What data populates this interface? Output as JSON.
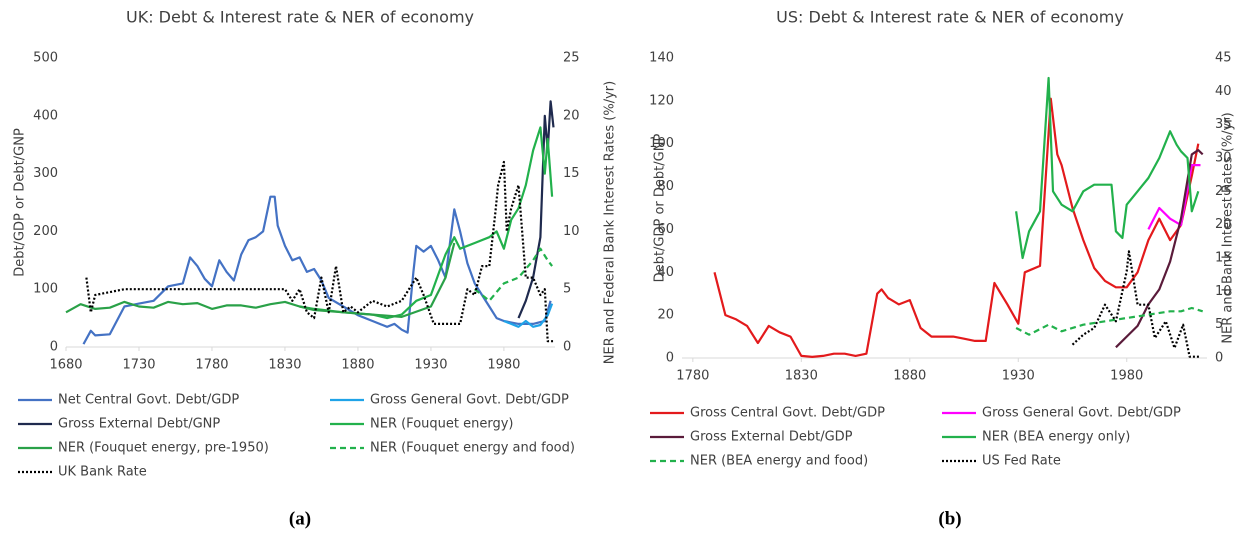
{
  "chart_data": [
    {
      "type": "line",
      "title": "UK: Debt & Interest rate & NER of economy",
      "caption": "(a)",
      "ylabel": "Debt/GDP or Debt/GNP",
      "y2label": "NER and Federal Bank Interest Rates (%/yr)",
      "xlim": [
        1680,
        2015
      ],
      "xticks": [
        1680,
        1730,
        1780,
        1830,
        1880,
        1930,
        1980
      ],
      "ylim": [
        0,
        500
      ],
      "yticks": [
        0,
        100,
        200,
        300,
        400,
        500
      ],
      "y2lim": [
        0,
        25
      ],
      "y2ticks": [
        0,
        5,
        10,
        15,
        20,
        25
      ],
      "grid": false,
      "series": [
        {
          "name": "Net Central Govt. Debt/GDP",
          "color": "#4472c4",
          "style": "solid",
          "x": [
            1692,
            1697,
            1700,
            1710,
            1720,
            1730,
            1740,
            1750,
            1760,
            1765,
            1770,
            1775,
            1780,
            1785,
            1790,
            1795,
            1800,
            1805,
            1810,
            1815,
            1820,
            1823,
            1825,
            1830,
            1835,
            1840,
            1845,
            1850,
            1855,
            1860,
            1870,
            1880,
            1890,
            1900,
            1905,
            1910,
            1914,
            1918,
            1920,
            1925,
            1930,
            1935,
            1940,
            1946,
            1950,
            1955,
            1960,
            1965,
            1970,
            1975,
            1980,
            1990,
            2000,
            2008,
            2012
          ],
          "values": [
            5,
            28,
            20,
            22,
            70,
            75,
            80,
            105,
            110,
            155,
            140,
            118,
            105,
            150,
            130,
            115,
            160,
            185,
            190,
            200,
            260,
            260,
            210,
            175,
            150,
            155,
            130,
            135,
            115,
            85,
            70,
            55,
            45,
            35,
            40,
            30,
            25,
            130,
            175,
            165,
            175,
            150,
            120,
            238,
            200,
            145,
            110,
            90,
            70,
            50,
            45,
            40,
            40,
            45,
            80
          ]
        },
        {
          "name": "Gross General Govt. Debt/GDP",
          "color": "#1fa3e8",
          "style": "solid",
          "x": [
            1980,
            1990,
            1995,
            2000,
            2005,
            2010,
            2013
          ],
          "values": [
            45,
            35,
            45,
            35,
            38,
            55,
            75
          ]
        },
        {
          "name": "Gross External Debt/GNP",
          "color": "#1f2a4e",
          "style": "solid",
          "x": [
            1990,
            1995,
            2000,
            2005,
            2008,
            2010,
            2012,
            2014
          ],
          "values": [
            50,
            80,
            120,
            190,
            400,
            340,
            425,
            380
          ]
        },
        {
          "name": "NER (Fouquet energy)",
          "color": "#22b14c",
          "style": "solid",
          "axis": "y2",
          "x": [
            1840,
            1850,
            1870,
            1890,
            1900,
            1910,
            1920,
            1930,
            1940,
            1946,
            1950,
            1960,
            1970,
            1975,
            1980,
            1985,
            1990,
            1995,
            2000,
            2005,
            2008,
            2010,
            2013
          ],
          "values": [
            3.5,
            3.3,
            3,
            2.8,
            2.5,
            2.8,
            4,
            4.5,
            8,
            9.5,
            8.5,
            9,
            9.5,
            10,
            8.5,
            11,
            12,
            14,
            17,
            19,
            15,
            18,
            13
          ]
        },
        {
          "name": "NER (Fouquet energy, pre-1950)",
          "color": "#2aa148",
          "style": "solid",
          "axis": "y2",
          "x": [
            1680,
            1690,
            1700,
            1710,
            1720,
            1730,
            1740,
            1750,
            1760,
            1770,
            1780,
            1790,
            1800,
            1810,
            1820,
            1830,
            1840,
            1850,
            1870,
            1890,
            1910,
            1930,
            1940,
            1946
          ],
          "values": [
            3,
            3.7,
            3.3,
            3.4,
            3.9,
            3.5,
            3.4,
            3.9,
            3.7,
            3.8,
            3.3,
            3.6,
            3.6,
            3.4,
            3.7,
            3.9,
            3.5,
            3.2,
            3,
            2.8,
            2.6,
            3.5,
            6,
            9
          ]
        },
        {
          "name": "NER (Fouquet energy and food)",
          "color": "#22b14c",
          "style": "dashed",
          "axis": "y2",
          "x": [
            1960,
            1970,
            1980,
            1990,
            2000,
            2005,
            2010,
            2013
          ],
          "values": [
            5,
            4,
            5.5,
            6,
            7.5,
            8.5,
            7.5,
            7
          ]
        },
        {
          "name": "UK Bank Rate",
          "color": "#000000",
          "style": "dotted",
          "axis": "y2",
          "x": [
            1694,
            1697,
            1700,
            1720,
            1830,
            1835,
            1840,
            1845,
            1850,
            1855,
            1860,
            1865,
            1870,
            1875,
            1880,
            1890,
            1900,
            1910,
            1920,
            1925,
            1932,
            1950,
            1955,
            1960,
            1965,
            1970,
            1974,
            1976,
            1980,
            1982,
            1985,
            1990,
            1995,
            2000,
            2005,
            2008,
            2010,
            2014
          ],
          "values": [
            6,
            3,
            4.5,
            5,
            5,
            4,
            5,
            3,
            2.5,
            6,
            3,
            7,
            3,
            3.5,
            3,
            4,
            3.5,
            4,
            6,
            4.5,
            2,
            2,
            5,
            4.5,
            7,
            7,
            11.5,
            14,
            16,
            10,
            12,
            14,
            6,
            6,
            4.5,
            5,
            0.5,
            0.5
          ]
        }
      ]
    },
    {
      "type": "line",
      "title": "US: Debt & Interest rate & NER of economy",
      "caption": "(b)",
      "ylabel": "Debt/GDP or Debt/GNP",
      "y2label": "NER and Bank Interest Rates (%/yr)",
      "xlim": [
        1775,
        2017
      ],
      "xticks": [
        1780,
        1830,
        1880,
        1930,
        1980
      ],
      "ylim": [
        0,
        140
      ],
      "yticks": [
        0,
        20,
        40,
        60,
        80,
        100,
        120,
        140
      ],
      "y2lim": [
        0,
        45
      ],
      "y2ticks": [
        0,
        5,
        10,
        15,
        20,
        25,
        30,
        35,
        40,
        45
      ],
      "grid": false,
      "series": [
        {
          "name": "Gross Central Govt. Debt/GDP",
          "color": "#e31a1c",
          "style": "solid",
          "x": [
            1790,
            1795,
            1800,
            1805,
            1810,
            1815,
            1820,
            1825,
            1830,
            1835,
            1840,
            1845,
            1850,
            1855,
            1860,
            1865,
            1867,
            1870,
            1875,
            1880,
            1885,
            1890,
            1895,
            1900,
            1905,
            1910,
            1915,
            1919,
            1925,
            1930,
            1933,
            1940,
            1945,
            1948,
            1950,
            1955,
            1960,
            1965,
            1970,
            1975,
            1980,
            1985,
            1990,
            1995,
            2000,
            2005,
            2010,
            2013
          ],
          "values": [
            40,
            20,
            18,
            15,
            7,
            15,
            12,
            10,
            1,
            0.5,
            1,
            2,
            2,
            1,
            2,
            30,
            32,
            28,
            25,
            27,
            14,
            10,
            10,
            10,
            9,
            8,
            8,
            35,
            25,
            16,
            40,
            43,
            121,
            95,
            90,
            70,
            55,
            42,
            36,
            33,
            33,
            40,
            55,
            65,
            55,
            62,
            85,
            100
          ]
        },
        {
          "name": "Gross General Govt. Debt/GDP",
          "color": "#ff00ff",
          "style": "solid",
          "x": [
            1990,
            1995,
            2000,
            2005,
            2010,
            2014
          ],
          "values": [
            60,
            70,
            65,
            62,
            90,
            90
          ]
        },
        {
          "name": "Gross External Debt/GDP",
          "color": "#5a1b3a",
          "style": "solid",
          "x": [
            1975,
            1980,
            1985,
            1990,
            1995,
            2000,
            2005,
            2010,
            2013,
            2015
          ],
          "values": [
            5,
            10,
            15,
            25,
            32,
            45,
            65,
            95,
            97,
            95
          ]
        },
        {
          "name": "NER (BEA energy only)",
          "color": "#22b14c",
          "style": "solid",
          "axis": "y2",
          "x": [
            1929,
            1932,
            1935,
            1940,
            1944,
            1946,
            1950,
            1955,
            1960,
            1965,
            1970,
            1973,
            1975,
            1978,
            1980,
            1985,
            1990,
            1995,
            2000,
            2003,
            2005,
            2008,
            2010,
            2013
          ],
          "values": [
            22,
            15,
            19,
            22,
            42,
            25,
            23,
            22,
            25,
            26,
            26,
            26,
            19,
            18,
            23,
            25,
            27,
            30,
            34,
            32,
            31,
            30,
            22,
            25
          ]
        },
        {
          "name": "NER (BEA energy and food)",
          "color": "#22b14c",
          "style": "dashed",
          "axis": "y2",
          "x": [
            1929,
            1935,
            1944,
            1950,
            1960,
            1970,
            1980,
            1990,
            2000,
            2005,
            2010,
            2015
          ],
          "values": [
            4.5,
            3.5,
            5,
            4,
            5,
            5.5,
            6,
            6.5,
            7,
            7,
            7.5,
            7
          ]
        },
        {
          "name": "US Fed Rate",
          "color": "#000000",
          "style": "dotted",
          "axis": "y2",
          "x": [
            1955,
            1960,
            1965,
            1970,
            1975,
            1980,
            1981,
            1985,
            1990,
            1993,
            1998,
            2002,
            2006,
            2009,
            2014
          ],
          "values": [
            2,
            3.5,
            4.5,
            8,
            5.5,
            13,
            16,
            8,
            8,
            3,
            5.5,
            1.5,
            5,
            0.2,
            0.2
          ]
        }
      ]
    }
  ]
}
